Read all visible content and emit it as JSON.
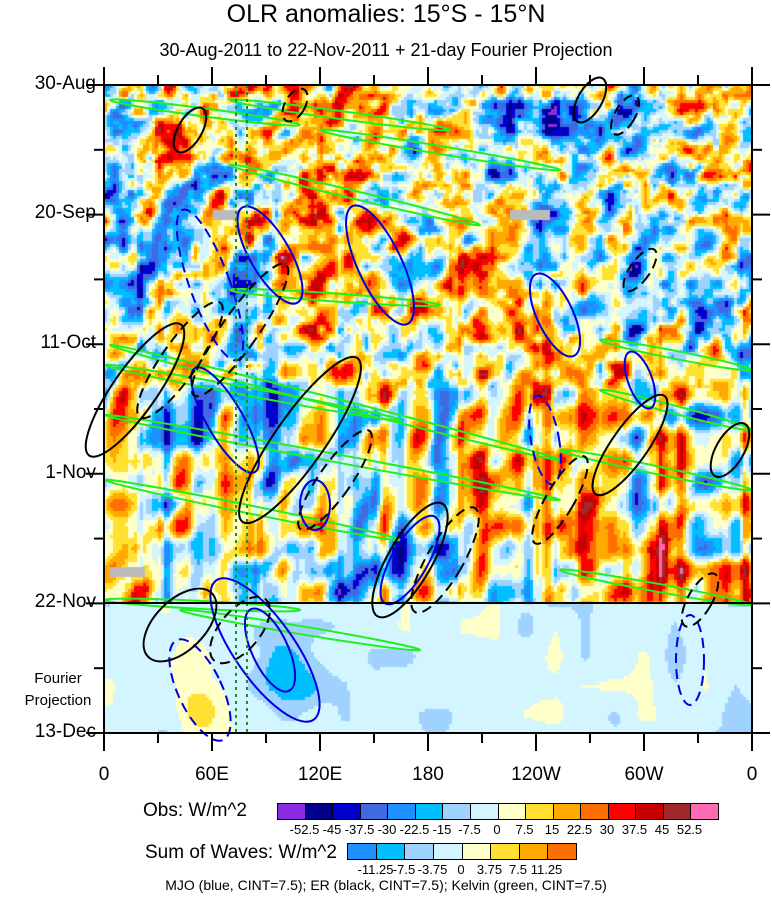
{
  "title": "OLR anomalies: 15°S - 15°N",
  "subtitle": "30-Aug-2011 to 22-Nov-2011 + 21-day Fourier Projection",
  "chart_data": {
    "type": "heatmap",
    "title": "OLR anomalies: 15°S - 15°N",
    "subtitle": "30-Aug-2011 to 22-Nov-2011 + 21-day Fourier Projection",
    "y_ticks": [
      "30-Aug",
      "20-Sep",
      "11-Oct",
      "1-Nov",
      "22-Nov",
      "13-Dec"
    ],
    "x_ticks": [
      "0",
      "60E",
      "120E",
      "180",
      "120W",
      "60W",
      "0"
    ],
    "xlim": [
      0,
      360
    ],
    "projection_label": "Fourier Projection",
    "obs_colorbar": {
      "label": "Obs: W/m^2",
      "levels": [
        "-52.5",
        "-45",
        "-37.5",
        "-30",
        "-22.5",
        "-15",
        "-7.5",
        "0",
        "7.5",
        "15",
        "22.5",
        "30",
        "37.5",
        "45",
        "52.5"
      ],
      "colors": [
        "#8a2be2",
        "#00008b",
        "#0000cd",
        "#4169e1",
        "#1e90ff",
        "#00bfff",
        "#a0d2ff",
        "#d2f5ff",
        "#ffffc8",
        "#ffe132",
        "#ffaa00",
        "#ff6e00",
        "#ff0000",
        "#c80000",
        "#a02828",
        "#ff69b4"
      ]
    },
    "waves_colorbar": {
      "label": "Sum of Waves: W/m^2",
      "levels": [
        "-11.25",
        "-7.5",
        "-3.75",
        "0",
        "3.75",
        "7.5",
        "11.25"
      ],
      "colors": [
        "#1e90ff",
        "#00bfff",
        "#a0d2ff",
        "#d2f5ff",
        "#ffffc8",
        "#ffe132",
        "#ffaa00",
        "#ff6e00"
      ]
    },
    "legend_note": "MJO (blue, CINT=7.5); ER (black, CINT=7.5); Kelvin (green, CINT=7.5)",
    "series": [
      {
        "name": "MJO",
        "color": "#0000dd"
      },
      {
        "name": "ER",
        "color": "#000000"
      },
      {
        "name": "Kelvin",
        "color": "#22ee22"
      }
    ]
  }
}
